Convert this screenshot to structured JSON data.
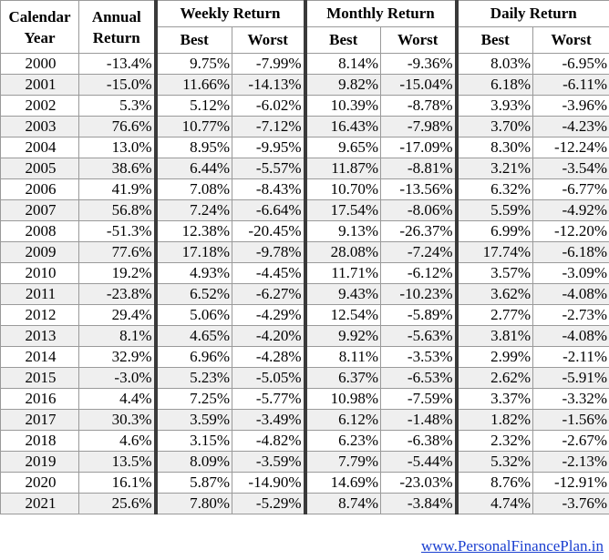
{
  "headers": {
    "year": [
      "Calendar",
      "Year"
    ],
    "annual": [
      "Annual",
      "Return"
    ],
    "weekly": "Weekly Return",
    "monthly": "Monthly Return",
    "daily": "Daily Return",
    "best": "Best",
    "worst": "Worst"
  },
  "rows": [
    [
      "2000",
      "-13.4%",
      "9.75%",
      "-7.99%",
      "8.14%",
      "-9.36%",
      "8.03%",
      "-6.95%"
    ],
    [
      "2001",
      "-15.0%",
      "11.66%",
      "-14.13%",
      "9.82%",
      "-15.04%",
      "6.18%",
      "-6.11%"
    ],
    [
      "2002",
      "5.3%",
      "5.12%",
      "-6.02%",
      "10.39%",
      "-8.78%",
      "3.93%",
      "-3.96%"
    ],
    [
      "2003",
      "76.6%",
      "10.77%",
      "-7.12%",
      "16.43%",
      "-7.98%",
      "3.70%",
      "-4.23%"
    ],
    [
      "2004",
      "13.0%",
      "8.95%",
      "-9.95%",
      "9.65%",
      "-17.09%",
      "8.30%",
      "-12.24%"
    ],
    [
      "2005",
      "38.6%",
      "6.44%",
      "-5.57%",
      "11.87%",
      "-8.81%",
      "3.21%",
      "-3.54%"
    ],
    [
      "2006",
      "41.9%",
      "7.08%",
      "-8.43%",
      "10.70%",
      "-13.56%",
      "6.32%",
      "-6.77%"
    ],
    [
      "2007",
      "56.8%",
      "7.24%",
      "-6.64%",
      "17.54%",
      "-8.06%",
      "5.59%",
      "-4.92%"
    ],
    [
      "2008",
      "-51.3%",
      "12.38%",
      "-20.45%",
      "9.13%",
      "-26.37%",
      "6.99%",
      "-12.20%"
    ],
    [
      "2009",
      "77.6%",
      "17.18%",
      "-9.78%",
      "28.08%",
      "-7.24%",
      "17.74%",
      "-6.18%"
    ],
    [
      "2010",
      "19.2%",
      "4.93%",
      "-4.45%",
      "11.71%",
      "-6.12%",
      "3.57%",
      "-3.09%"
    ],
    [
      "2011",
      "-23.8%",
      "6.52%",
      "-6.27%",
      "9.43%",
      "-10.23%",
      "3.62%",
      "-4.08%"
    ],
    [
      "2012",
      "29.4%",
      "5.06%",
      "-4.29%",
      "12.54%",
      "-5.89%",
      "2.77%",
      "-2.73%"
    ],
    [
      "2013",
      "8.1%",
      "4.65%",
      "-4.20%",
      "9.92%",
      "-5.63%",
      "3.81%",
      "-4.08%"
    ],
    [
      "2014",
      "32.9%",
      "6.96%",
      "-4.28%",
      "8.11%",
      "-3.53%",
      "2.99%",
      "-2.11%"
    ],
    [
      "2015",
      "-3.0%",
      "5.23%",
      "-5.05%",
      "6.37%",
      "-6.53%",
      "2.62%",
      "-5.91%"
    ],
    [
      "2016",
      "4.4%",
      "7.25%",
      "-5.77%",
      "10.98%",
      "-7.59%",
      "3.37%",
      "-3.32%"
    ],
    [
      "2017",
      "30.3%",
      "3.59%",
      "-3.49%",
      "6.12%",
      "-1.48%",
      "1.82%",
      "-1.56%"
    ],
    [
      "2018",
      "4.6%",
      "3.15%",
      "-4.82%",
      "6.23%",
      "-6.38%",
      "2.32%",
      "-2.67%"
    ],
    [
      "2019",
      "13.5%",
      "8.09%",
      "-3.59%",
      "7.79%",
      "-5.44%",
      "5.32%",
      "-2.13%"
    ],
    [
      "2020",
      "16.1%",
      "5.87%",
      "-14.90%",
      "14.69%",
      "-23.03%",
      "8.76%",
      "-12.91%"
    ],
    [
      "2021",
      "25.6%",
      "7.80%",
      "-5.29%",
      "8.74%",
      "-3.84%",
      "4.74%",
      "-3.76%"
    ]
  ],
  "footer": "www.PersonalFinancePlan.in"
}
